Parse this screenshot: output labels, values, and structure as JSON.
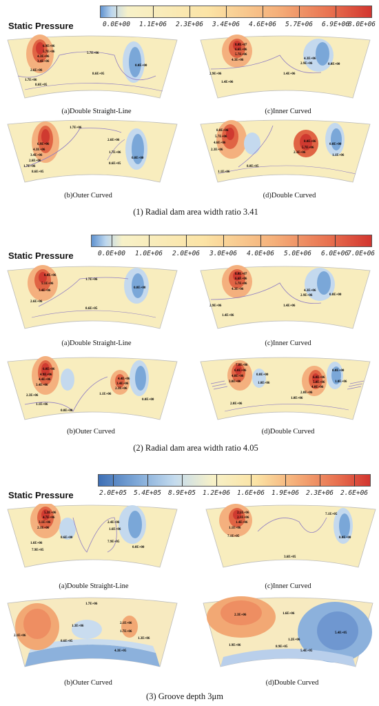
{
  "sections": [
    {
      "title": "Static Pressure",
      "caption": "(1) Radial dam area width ratio 3.41",
      "colorbar_ticks": [
        "0.0E+00",
        "1.1E+06",
        "2.3E+06",
        "3.4E+06",
        "4.6E+06",
        "5.7E+06",
        "6.9E+06",
        "8.0E+06"
      ],
      "panels": [
        {
          "caption": "(a)Double Straight-Line",
          "labels": [
            "6.9E+06",
            "5.7E+06",
            "4.3E+06",
            "3.4E+06",
            "2.6E+06",
            "1.7E+06",
            "8.6E+05",
            "5.7E+06",
            "8.6E+05",
            "0.0E+00"
          ]
        },
        {
          "caption": "(c)Inner Curved",
          "labels": [
            "8.0E+07",
            "6.6E+06",
            "5.7E+06",
            "4.3E+06",
            "2.9E+06",
            "1.4E+06",
            "1.4E+06",
            "4.3E+06",
            "2.9E+06",
            "0.0E+00"
          ]
        },
        {
          "caption": "(b)Outer Curved",
          "labels": [
            "6.9E+06",
            "4.3E+06",
            "3.4E+06",
            "2.6E+06",
            "1.7E+06",
            "8.6E+05",
            "1.7E+06",
            "2.6E+06",
            "1.7E+06",
            "8.6E+05",
            "0.0E+00"
          ]
        },
        {
          "caption": "(d)Double Curved",
          "labels": [
            "8.0E+06",
            "5.7E+06",
            "4.6E+06",
            "2.3E+06",
            "1.1E+06",
            "8.0E+05",
            "8.0E+06",
            "5.7E+06",
            "2.3E+06",
            "0.0E+00",
            "1.1E+06"
          ]
        }
      ]
    },
    {
      "title": "Static Pressure",
      "caption": "(2) Radial dam area width ratio 4.05",
      "colorbar_ticks": [
        "0.0E+00",
        "1.0E+06",
        "2.0E+06",
        "3.0E+06",
        "4.0E+06",
        "5.0E+06",
        "6.0E+06",
        "7.0E+06"
      ],
      "panels": [
        {
          "caption": "(a)Double Straight-Line",
          "labels": [
            "6.0E+06",
            "5.1E+06",
            "3.4E+06",
            "2.6E+06",
            "1.7E+06",
            "8.6E+05",
            "0.0E+00"
          ]
        },
        {
          "caption": "(c)Inner Curved",
          "labels": [
            "8.0E+07",
            "6.6E+06",
            "5.7E+06",
            "4.3E+06",
            "2.9E+06",
            "1.4E+06",
            "1.4E+06",
            "4.3E+06",
            "2.9E+06",
            "0.0E+00"
          ]
        },
        {
          "caption": "(b)Outer Curved",
          "labels": [
            "6.0E+06",
            "4.9E+06",
            "4.4E+06",
            "3.4E+06",
            "2.3E+06",
            "1.1E+06",
            "0.0E+00",
            "1.1E+06",
            "4.4E+06",
            "3.4E+06",
            "2.3E+06",
            "0.0E+00"
          ]
        },
        {
          "caption": "(d)Double Curved",
          "labels": [
            "7.0E+06",
            "6.0E+06",
            "4.0E+06",
            "3.0E+06",
            "0.0E+00",
            "1.0E+06",
            "2.0E+06",
            "1.0E+06",
            "6.0E+06",
            "5.0E+06",
            "4.0E+06",
            "0.0E+00",
            "1.0E+06",
            "2.0E+06"
          ]
        }
      ]
    },
    {
      "title": "Static Pressure",
      "caption": "(3) Groove depth 3μm",
      "colorbar_ticks": [
        "2.0E+05",
        "5.4E+05",
        "8.9E+05",
        "1.2E+06",
        "1.6E+06",
        "1.9E+06",
        "2.3E+06",
        "2.6E+06"
      ],
      "panels": [
        {
          "caption": "(a)Double Straight-Line",
          "labels": [
            "5.3E+06",
            "4.7E+06",
            "3.1E+06",
            "2.1E+06",
            "1.6E+06",
            "7.9E+05",
            "8.6E+00",
            "2.4E+06",
            "1.6E+06",
            "7.9E+05",
            "0.0E+00"
          ]
        },
        {
          "caption": "(c)Inner Curved",
          "labels": [
            "2.5E+06",
            "2.1E+06",
            "1.4E+06",
            "1.1E+06",
            "7.1E+05",
            "7.1E+05",
            "3.6E+05",
            "0.0E+00"
          ]
        },
        {
          "caption": "(b)Outer Curved",
          "labels": [
            "1.7E+06",
            "2.1E+06",
            "1.3E+06",
            "2.1E+06",
            "1.7E+06",
            "1.3E+06",
            "8.6E+05",
            "4.3E+05"
          ]
        },
        {
          "caption": "(d)Double Curved",
          "labels": [
            "2.3E+06",
            "1.6E+06",
            "1.9E+06",
            "1.2E+06",
            "8.9E+05",
            "5.4E+05",
            "5.4E+05"
          ]
        }
      ]
    }
  ]
}
